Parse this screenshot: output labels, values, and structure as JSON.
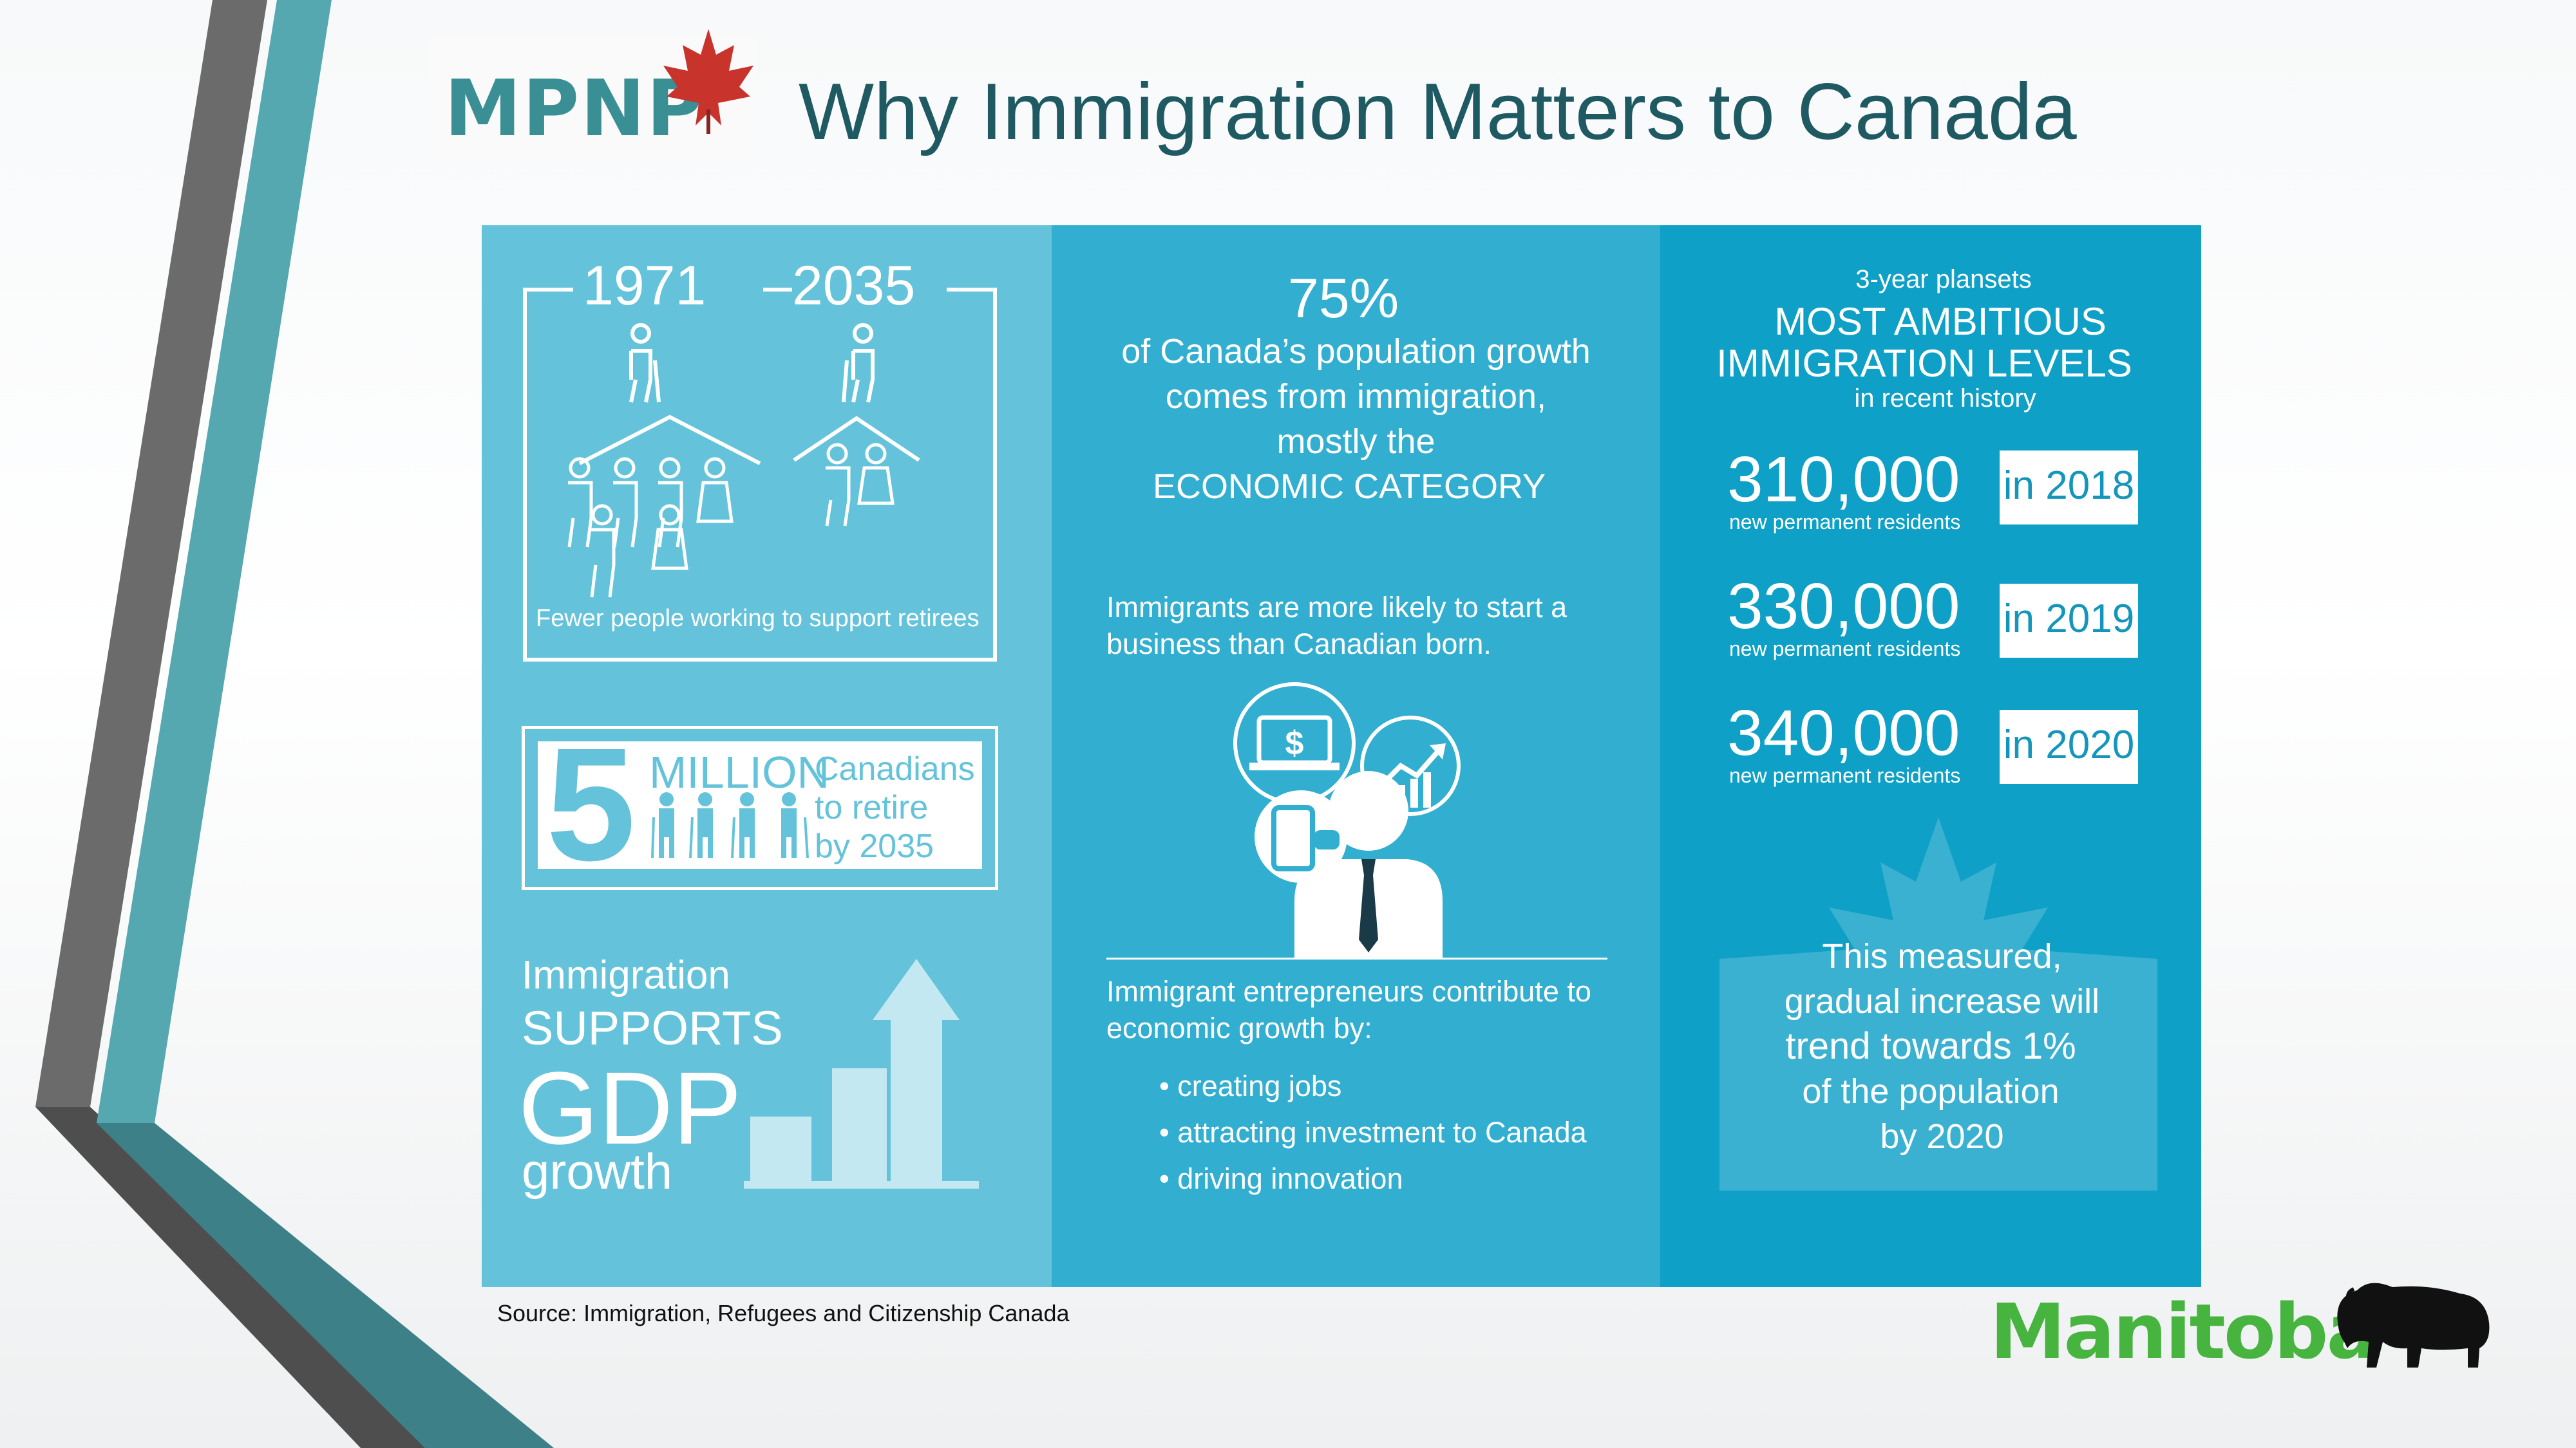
{
  "header": {
    "logo_text": "MPNP",
    "title": "Why Immigration Matters to Canada"
  },
  "panel_left": {
    "year_a": "1971",
    "year_b": "2035",
    "retirees_caption": "Fewer people working to support retirees",
    "million_number": "5",
    "million_word": "MILLION",
    "million_line1": "Canadians",
    "million_line2": "to retire",
    "million_line3": "by 2035",
    "gdp_line1": "Immigration",
    "gdp_line2": "SUPPORTS",
    "gdp_line3": "GDP",
    "gdp_line4": "growth"
  },
  "panel_middle": {
    "percent": "75%",
    "growth_line1": "of Canada’s population growth",
    "growth_line2": "comes from immigration,",
    "growth_line3": "mostly the",
    "growth_line4": "ECONOMIC CATEGORY",
    "business_line1": "Immigrants are more likely to start a",
    "business_line2": "business  than Canadian born.",
    "entre_line1": "Immigrant entrepreneurs contribute to",
    "entre_line2": "economic growth by:",
    "bullets": [
      "creating jobs",
      "attracting investment  to Canada",
      "driving innovation"
    ]
  },
  "panel_right": {
    "plan_sub": "3-year plansets",
    "headline_line1": "MOST AMBITIOUS",
    "headline_line2": "IMMIGRATION LEVELS",
    "headline_sub": "in recent history",
    "levels": [
      {
        "number": "310,000",
        "caption": "new permanent residents",
        "year": "in 2018"
      },
      {
        "number": "330,000",
        "caption": "new permanent residents",
        "year": "in 2019"
      },
      {
        "number": "340,000",
        "caption": "new permanent residents",
        "year": "in 2020"
      }
    ],
    "trend_line1": "This measured,",
    "trend_line2": "gradual increase will",
    "trend_line3": "trend towards 1%",
    "trend_line4": "of the population",
    "trend_line5": "by 2020"
  },
  "footer": {
    "source": "Source: Immigration, Refugees and Citizenship Canada",
    "brand": "Manitoba"
  },
  "colors": {
    "panel_left": "#64c3da",
    "panel_middle": "#32aed0",
    "panel_right": "#0ea0c6",
    "title": "#1f5a63",
    "logo": "#3a8f95",
    "maple_leaf": "#c8332c",
    "brand_green": "#47b43f"
  },
  "icons": [
    "maple-leaf-icon",
    "elderly-person-icon",
    "worker-family-icon",
    "retiree-group-icon",
    "bar-chart-up-arrow-icon",
    "dollar-laptop-icon",
    "growth-chart-icon",
    "smartphone-icon",
    "businessman-icon",
    "faded-maple-leaf-icon",
    "bison-icon"
  ]
}
